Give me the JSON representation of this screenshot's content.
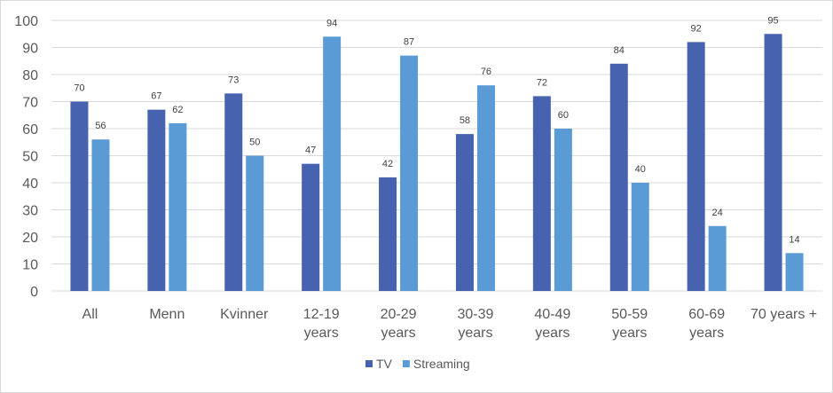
{
  "chart_data": {
    "type": "bar",
    "title": "",
    "xlabel": "",
    "ylabel": "",
    "ylim": [
      0,
      100
    ],
    "yticks": [
      0,
      10,
      20,
      30,
      40,
      50,
      60,
      70,
      80,
      90,
      100
    ],
    "grid": true,
    "legend_position": "bottom",
    "categories": [
      [
        "All"
      ],
      [
        "Menn"
      ],
      [
        "Kvinner"
      ],
      [
        "12-19",
        "years"
      ],
      [
        "20-29",
        "years"
      ],
      [
        "30-39",
        "years"
      ],
      [
        "40-49",
        "years"
      ],
      [
        "50-59",
        "years"
      ],
      [
        "60-69",
        "years"
      ],
      [
        "70 years +"
      ]
    ],
    "series": [
      {
        "name": "TV",
        "color": "#4762AE",
        "values": [
          70,
          67,
          73,
          47,
          42,
          58,
          72,
          84,
          92,
          95
        ]
      },
      {
        "name": "Streaming",
        "color": "#5B9BD5",
        "values": [
          56,
          62,
          50,
          94,
          87,
          76,
          60,
          40,
          24,
          14
        ]
      }
    ]
  }
}
